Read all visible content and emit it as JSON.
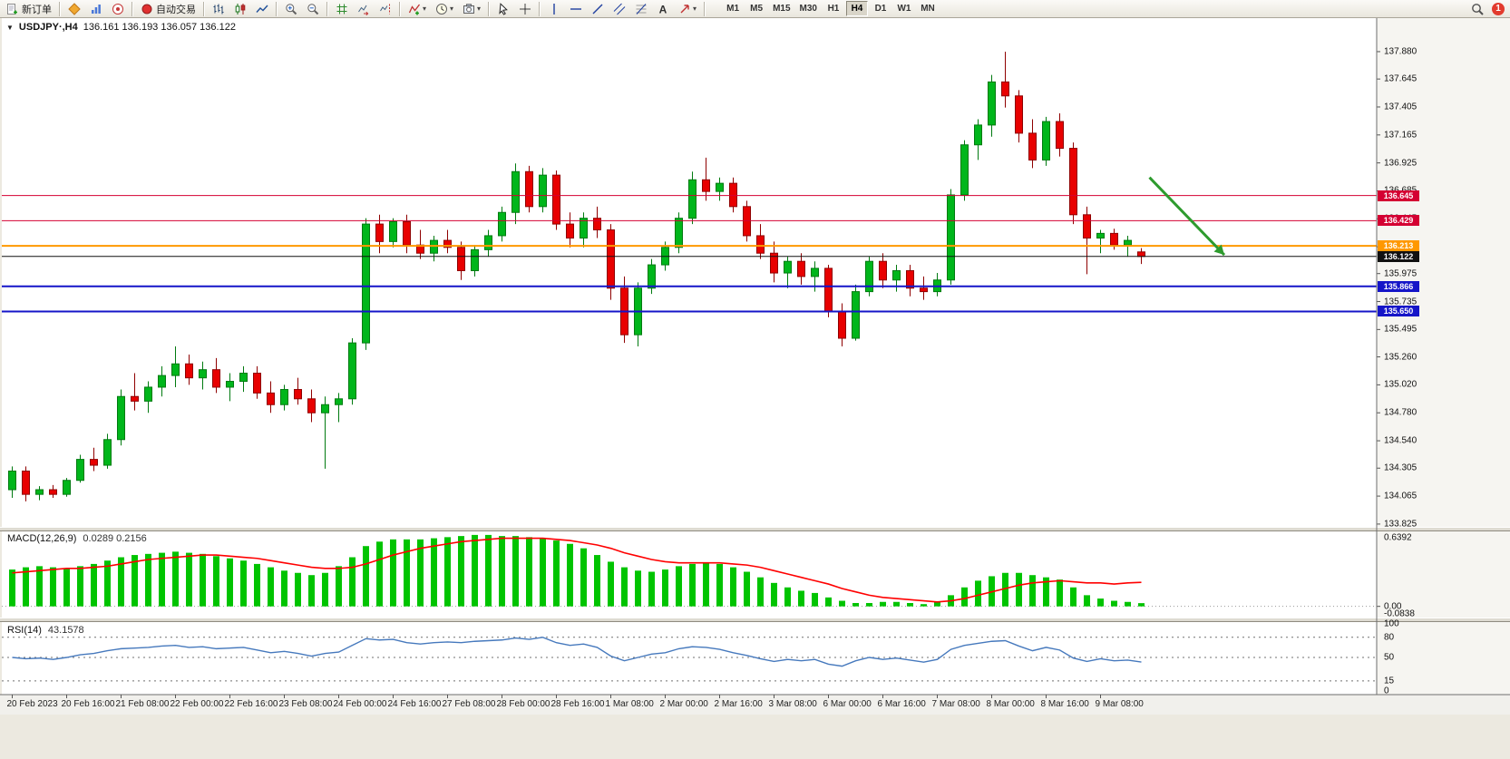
{
  "toolbar": {
    "caret_glyph": "▾",
    "notification_count": "1",
    "groups": [
      {
        "items": [
          {
            "name": "new-order-button",
            "icon": "new-order",
            "label": "新订单"
          }
        ]
      },
      {
        "items": [
          {
            "name": "mql5-market-button",
            "icon": "mql5"
          },
          {
            "name": "charts-button",
            "icon": "charts"
          },
          {
            "name": "community-button",
            "icon": "community"
          }
        ]
      },
      {
        "items": [
          {
            "name": "autotrading-button",
            "icon": "autotrade",
            "label": "自动交易"
          }
        ]
      },
      {
        "items": [
          {
            "name": "bar-chart-button",
            "icon": "bars"
          },
          {
            "name": "candlestick-chart-button",
            "icon": "candles"
          },
          {
            "name": "line-chart-button",
            "icon": "line"
          }
        ]
      },
      {
        "items": [
          {
            "name": "zoom-in-button",
            "icon": "zoom-in"
          },
          {
            "name": "zoom-out-button",
            "icon": "zoom-out"
          }
        ]
      },
      {
        "items": [
          {
            "name": "grid-button",
            "icon": "grid"
          },
          {
            "name": "auto-scroll-button",
            "icon": "autoscroll"
          },
          {
            "name": "chart-shift-button",
            "icon": "chartshift"
          }
        ]
      },
      {
        "items": [
          {
            "name": "indicators-button",
            "icon": "indicators",
            "caret": true
          },
          {
            "name": "periods-button",
            "icon": "clock",
            "caret": true
          },
          {
            "name": "templates-button",
            "icon": "camera",
            "caret": true
          }
        ]
      },
      {
        "items": [
          {
            "name": "cursor-button",
            "icon": "cursor"
          },
          {
            "name": "crosshair-button",
            "icon": "crosshair"
          }
        ]
      },
      {
        "items": [
          {
            "name": "vertical-line-button",
            "icon": "vline"
          },
          {
            "name": "horizontal-line-button",
            "icon": "hline"
          },
          {
            "name": "trendline-button",
            "icon": "trendline"
          },
          {
            "name": "channel-button",
            "icon": "channel"
          },
          {
            "name": "fibonacci-button",
            "icon": "fibo"
          },
          {
            "name": "text-button",
            "icon": "text"
          },
          {
            "name": "arrows-button",
            "icon": "arrows",
            "caret": true
          }
        ]
      }
    ],
    "timeframes": [
      "M1",
      "M5",
      "M15",
      "M30",
      "H1",
      "H4",
      "D1",
      "W1",
      "MN"
    ],
    "active_timeframe": "H4",
    "right_items": [
      {
        "name": "search-button",
        "icon": "search"
      }
    ]
  },
  "chart": {
    "collapse_glyph": "▼",
    "symbol_label": "USDJPY·,H4",
    "ohlc_text": "136.161 136.193 136.057 136.122"
  },
  "chart_data": {
    "type": "candlestick",
    "symbol": "USDJPY",
    "timeframe": "H4",
    "title": "USDJPY·,H4 136.161 136.193 136.057 136.122",
    "grid": "off",
    "candle_up_color": "#00b61b",
    "candle_down_color": "#e80000",
    "price_axis": {
      "top_price": 138.152,
      "bottom_price": 133.801,
      "ticks": [
        "137.880",
        "137.645",
        "137.405",
        "137.165",
        "136.925",
        "136.685",
        "136.445",
        "136.205",
        "135.975",
        "135.735",
        "135.495",
        "135.260",
        "135.020",
        "134.780",
        "134.540",
        "134.305",
        "134.065",
        "133.825"
      ]
    },
    "levels": [
      {
        "price": 136.645,
        "label": "136.645",
        "color": "#d40032",
        "width": 1
      },
      {
        "price": 136.429,
        "label": "136.429",
        "color": "#d40032",
        "width": 1
      },
      {
        "price": 136.213,
        "label": "136.213",
        "color": "#ff9800",
        "width": 2
      },
      {
        "price": 136.122,
        "label": "136.122",
        "color": "#111111",
        "width": 1
      },
      {
        "price": 135.866,
        "label": "135.866",
        "color": "#1515c8",
        "width": 2
      },
      {
        "price": 135.65,
        "label": "135.650",
        "color": "#1515c8",
        "width": 2
      }
    ],
    "annotation_arrow": {
      "color": "#2e9b2e",
      "from": {
        "bar": 83.6,
        "price": 136.8
      },
      "to": {
        "bar": 89.1,
        "price": 136.135
      }
    },
    "time_labels": [
      "20 Feb 2023",
      "20 Feb 16:00",
      "21 Feb 08:00",
      "22 Feb 00:00",
      "22 Feb 16:00",
      "23 Feb 08:00",
      "24 Feb 00:00",
      "24 Feb 16:00",
      "27 Feb 08:00",
      "28 Feb 00:00",
      "28 Feb 16:00",
      "1 Mar 08:00",
      "2 Mar 00:00",
      "2 Mar 16:00",
      "3 Mar 08:00",
      "6 Mar 00:00",
      "6 Mar 16:00",
      "7 Mar 08:00",
      "8 Mar 00:00",
      "8 Mar 16:00",
      "9 Mar 08:00"
    ],
    "candles": [
      [
        134.12,
        134.32,
        134.05,
        134.28
      ],
      [
        134.28,
        134.32,
        134.02,
        134.08
      ],
      [
        134.08,
        134.15,
        134.03,
        134.12
      ],
      [
        134.12,
        134.16,
        134.05,
        134.08
      ],
      [
        134.08,
        134.22,
        134.06,
        134.2
      ],
      [
        134.2,
        134.42,
        134.18,
        134.38
      ],
      [
        134.38,
        134.48,
        134.28,
        134.33
      ],
      [
        134.33,
        134.6,
        134.3,
        134.55
      ],
      [
        134.55,
        134.98,
        134.5,
        134.92
      ],
      [
        134.92,
        135.12,
        134.8,
        134.88
      ],
      [
        134.88,
        135.05,
        134.78,
        135.0
      ],
      [
        135.0,
        135.18,
        134.92,
        135.1
      ],
      [
        135.1,
        135.35,
        135.0,
        135.2
      ],
      [
        135.2,
        135.28,
        135.02,
        135.08
      ],
      [
        135.08,
        135.22,
        134.98,
        135.15
      ],
      [
        135.15,
        135.25,
        134.95,
        135.0
      ],
      [
        135.0,
        135.12,
        134.88,
        135.05
      ],
      [
        135.05,
        135.18,
        134.96,
        135.12
      ],
      [
        135.12,
        135.18,
        134.9,
        134.95
      ],
      [
        134.95,
        135.05,
        134.78,
        134.85
      ],
      [
        134.85,
        135.02,
        134.8,
        134.98
      ],
      [
        134.98,
        135.08,
        134.85,
        134.9
      ],
      [
        134.9,
        134.98,
        134.7,
        134.78
      ],
      [
        134.78,
        134.92,
        134.3,
        134.85
      ],
      [
        134.85,
        134.95,
        134.7,
        134.9
      ],
      [
        134.9,
        135.42,
        134.85,
        135.38
      ],
      [
        135.38,
        136.45,
        135.32,
        136.4
      ],
      [
        136.4,
        136.48,
        136.15,
        136.25
      ],
      [
        136.25,
        136.45,
        136.2,
        136.42
      ],
      [
        136.42,
        136.48,
        136.15,
        136.22
      ],
      [
        136.22,
        136.35,
        136.1,
        136.15
      ],
      [
        136.15,
        136.3,
        136.08,
        136.26
      ],
      [
        136.26,
        136.35,
        136.15,
        136.2
      ],
      [
        136.2,
        136.25,
        135.92,
        136.0
      ],
      [
        136.0,
        136.22,
        135.95,
        136.18
      ],
      [
        136.18,
        136.35,
        136.12,
        136.3
      ],
      [
        136.3,
        136.55,
        136.25,
        136.5
      ],
      [
        136.5,
        136.92,
        136.4,
        136.85
      ],
      [
        136.85,
        136.9,
        136.5,
        136.55
      ],
      [
        136.55,
        136.88,
        136.5,
        136.82
      ],
      [
        136.82,
        136.86,
        136.35,
        136.4
      ],
      [
        136.4,
        136.5,
        136.2,
        136.28
      ],
      [
        136.28,
        136.5,
        136.2,
        136.45
      ],
      [
        136.45,
        136.55,
        136.28,
        136.35
      ],
      [
        136.35,
        136.4,
        135.75,
        135.85
      ],
      [
        135.85,
        135.95,
        135.38,
        135.45
      ],
      [
        135.45,
        135.9,
        135.35,
        135.85
      ],
      [
        135.85,
        136.1,
        135.8,
        136.05
      ],
      [
        136.05,
        136.25,
        136.0,
        136.2
      ],
      [
        136.2,
        136.5,
        136.15,
        136.45
      ],
      [
        136.45,
        136.85,
        136.4,
        136.78
      ],
      [
        136.78,
        136.97,
        136.6,
        136.68
      ],
      [
        136.68,
        136.8,
        136.6,
        136.75
      ],
      [
        136.75,
        136.8,
        136.5,
        136.55
      ],
      [
        136.55,
        136.6,
        136.25,
        136.3
      ],
      [
        136.3,
        136.4,
        136.1,
        136.15
      ],
      [
        136.15,
        136.25,
        135.9,
        135.98
      ],
      [
        135.98,
        136.12,
        135.85,
        136.08
      ],
      [
        136.08,
        136.15,
        135.88,
        135.95
      ],
      [
        135.95,
        136.08,
        135.82,
        136.02
      ],
      [
        136.02,
        136.05,
        135.6,
        135.65
      ],
      [
        135.65,
        135.72,
        135.35,
        135.42
      ],
      [
        135.42,
        135.88,
        135.4,
        135.82
      ],
      [
        135.82,
        136.12,
        135.78,
        136.08
      ],
      [
        136.08,
        136.15,
        135.85,
        135.92
      ],
      [
        135.92,
        136.05,
        135.82,
        136.0
      ],
      [
        136.0,
        136.05,
        135.78,
        135.85
      ],
      [
        135.85,
        135.95,
        135.75,
        135.82
      ],
      [
        135.82,
        135.98,
        135.78,
        135.92
      ],
      [
        135.92,
        136.7,
        135.88,
        136.65
      ],
      [
        136.65,
        137.12,
        136.6,
        137.08
      ],
      [
        137.08,
        137.3,
        136.95,
        137.25
      ],
      [
        137.25,
        137.68,
        137.15,
        137.62
      ],
      [
        137.62,
        137.88,
        137.4,
        137.5
      ],
      [
        137.5,
        137.55,
        137.1,
        137.18
      ],
      [
        137.18,
        137.3,
        136.88,
        136.95
      ],
      [
        136.95,
        137.32,
        136.9,
        137.28
      ],
      [
        137.28,
        137.35,
        136.98,
        137.05
      ],
      [
        137.05,
        137.1,
        136.4,
        136.48
      ],
      [
        136.48,
        136.55,
        135.97,
        136.28
      ],
      [
        136.28,
        136.35,
        136.15,
        136.32
      ],
      [
        136.32,
        136.36,
        136.18,
        136.22
      ],
      [
        136.22,
        136.3,
        136.12,
        136.26
      ],
      [
        136.161,
        136.193,
        136.057,
        136.122
      ]
    ],
    "macd": {
      "title": "MACD(12,26,9)",
      "value_text": "0.0289 0.2156",
      "scale_labels": [
        "0.6392",
        "0.00",
        "-0.0838"
      ],
      "max": 0.6392,
      "min": -0.0838,
      "histogram_color": "#00c400",
      "signal_color": "#ff0000",
      "histogram": [
        0.33,
        0.35,
        0.36,
        0.35,
        0.34,
        0.36,
        0.38,
        0.41,
        0.44,
        0.46,
        0.47,
        0.48,
        0.49,
        0.48,
        0.47,
        0.45,
        0.43,
        0.41,
        0.38,
        0.35,
        0.32,
        0.3,
        0.28,
        0.3,
        0.36,
        0.44,
        0.54,
        0.58,
        0.6,
        0.6,
        0.6,
        0.61,
        0.62,
        0.63,
        0.64,
        0.64,
        0.63,
        0.63,
        0.62,
        0.61,
        0.59,
        0.56,
        0.52,
        0.46,
        0.4,
        0.35,
        0.32,
        0.31,
        0.33,
        0.36,
        0.38,
        0.39,
        0.38,
        0.35,
        0.31,
        0.26,
        0.21,
        0.17,
        0.14,
        0.12,
        0.08,
        0.05,
        0.03,
        0.03,
        0.04,
        0.04,
        0.03,
        0.02,
        0.04,
        0.1,
        0.17,
        0.23,
        0.27,
        0.3,
        0.3,
        0.28,
        0.26,
        0.24,
        0.17,
        0.1,
        0.07,
        0.05,
        0.04,
        0.0289
      ],
      "signal": [
        0.3,
        0.31,
        0.32,
        0.33,
        0.34,
        0.34,
        0.35,
        0.36,
        0.38,
        0.4,
        0.42,
        0.43,
        0.44,
        0.45,
        0.46,
        0.46,
        0.45,
        0.44,
        0.43,
        0.41,
        0.39,
        0.37,
        0.35,
        0.34,
        0.34,
        0.35,
        0.38,
        0.42,
        0.46,
        0.49,
        0.52,
        0.54,
        0.56,
        0.58,
        0.59,
        0.6,
        0.61,
        0.61,
        0.61,
        0.61,
        0.6,
        0.59,
        0.57,
        0.55,
        0.52,
        0.48,
        0.45,
        0.42,
        0.4,
        0.39,
        0.39,
        0.39,
        0.39,
        0.38,
        0.37,
        0.35,
        0.32,
        0.29,
        0.26,
        0.23,
        0.2,
        0.16,
        0.13,
        0.1,
        0.08,
        0.07,
        0.06,
        0.05,
        0.04,
        0.05,
        0.07,
        0.1,
        0.13,
        0.16,
        0.19,
        0.21,
        0.22,
        0.23,
        0.22,
        0.21,
        0.21,
        0.2,
        0.21,
        0.2156
      ]
    },
    "rsi": {
      "title": "RSI(14)",
      "value_text": "43.1578",
      "levels": [
        80,
        50,
        15
      ],
      "scale_labels": [
        "100",
        "80",
        "50",
        "15",
        "0"
      ],
      "line_color": "#4679bd",
      "values": [
        50,
        48,
        49,
        47,
        50,
        54,
        56,
        60,
        63,
        64,
        65,
        67,
        68,
        65,
        66,
        63,
        64,
        65,
        61,
        57,
        59,
        56,
        52,
        56,
        58,
        68,
        78,
        76,
        77,
        72,
        70,
        72,
        73,
        72,
        74,
        75,
        76,
        79,
        77,
        80,
        72,
        68,
        70,
        65,
        52,
        45,
        50,
        55,
        57,
        63,
        66,
        65,
        62,
        57,
        53,
        48,
        44,
        47,
        45,
        47,
        40,
        37,
        45,
        50,
        47,
        49,
        46,
        43,
        47,
        62,
        68,
        71,
        74,
        75,
        67,
        60,
        65,
        61,
        49,
        44,
        48,
        45,
        46,
        43.16
      ]
    }
  }
}
